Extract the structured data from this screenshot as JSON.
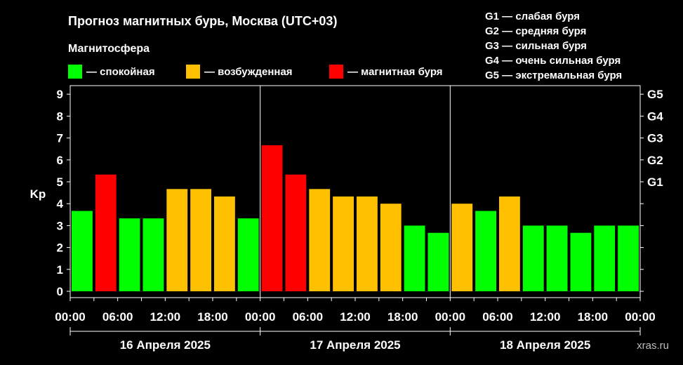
{
  "title": "Прогноз магнитных бурь, Москва (UTC+03)",
  "subtitle": "Магнитосфера",
  "legend": [
    {
      "label": "— спокойная",
      "color": "#00ff00"
    },
    {
      "label": "— возбужденная",
      "color": "#ffc000"
    },
    {
      "label": "— магнитная буря",
      "color": "#ff0000"
    }
  ],
  "g_legend": [
    "G1 — слабая буря",
    "G2 — средняя буря",
    "G3 — сильная буря",
    "G4 — очень сильная буря",
    "G5 — экстремальная буря"
  ],
  "watermark": "xras.ru",
  "chart_data": {
    "type": "bar",
    "ylabel": "Kp",
    "ylim": [
      0,
      9
    ],
    "yticks": [
      0,
      1,
      2,
      3,
      4,
      5,
      6,
      7,
      8,
      9
    ],
    "g_ticks": [
      {
        "label": "G1",
        "kp": 5
      },
      {
        "label": "G2",
        "kp": 6
      },
      {
        "label": "G3",
        "kp": 7
      },
      {
        "label": "G4",
        "kp": 8
      },
      {
        "label": "G5",
        "kp": 9
      }
    ],
    "xtick_labels": [
      "00:00",
      "06:00",
      "12:00",
      "18:00",
      "00:00",
      "06:00",
      "12:00",
      "18:00",
      "00:00",
      "06:00",
      "12:00",
      "18:00",
      "00:00"
    ],
    "days": [
      "16 Апреля 2025",
      "17 Апреля 2025",
      "18 Апреля 2025"
    ],
    "values": [
      3.67,
      5.33,
      3.33,
      3.33,
      4.67,
      4.67,
      4.33,
      3.33,
      6.67,
      5.33,
      4.67,
      4.33,
      4.33,
      4.0,
      3.0,
      2.67,
      4.0,
      3.67,
      4.33,
      3.0,
      3.0,
      2.67,
      3.0,
      3.0
    ],
    "colors": [
      "#00ff00",
      "#ff0000",
      "#00ff00",
      "#00ff00",
      "#ffc000",
      "#ffc000",
      "#ffc000",
      "#00ff00",
      "#ff0000",
      "#ff0000",
      "#ffc000",
      "#ffc000",
      "#ffc000",
      "#ffc000",
      "#00ff00",
      "#00ff00",
      "#ffc000",
      "#00ff00",
      "#ffc000",
      "#00ff00",
      "#00ff00",
      "#00ff00",
      "#00ff00",
      "#00ff00"
    ],
    "grid": false
  }
}
